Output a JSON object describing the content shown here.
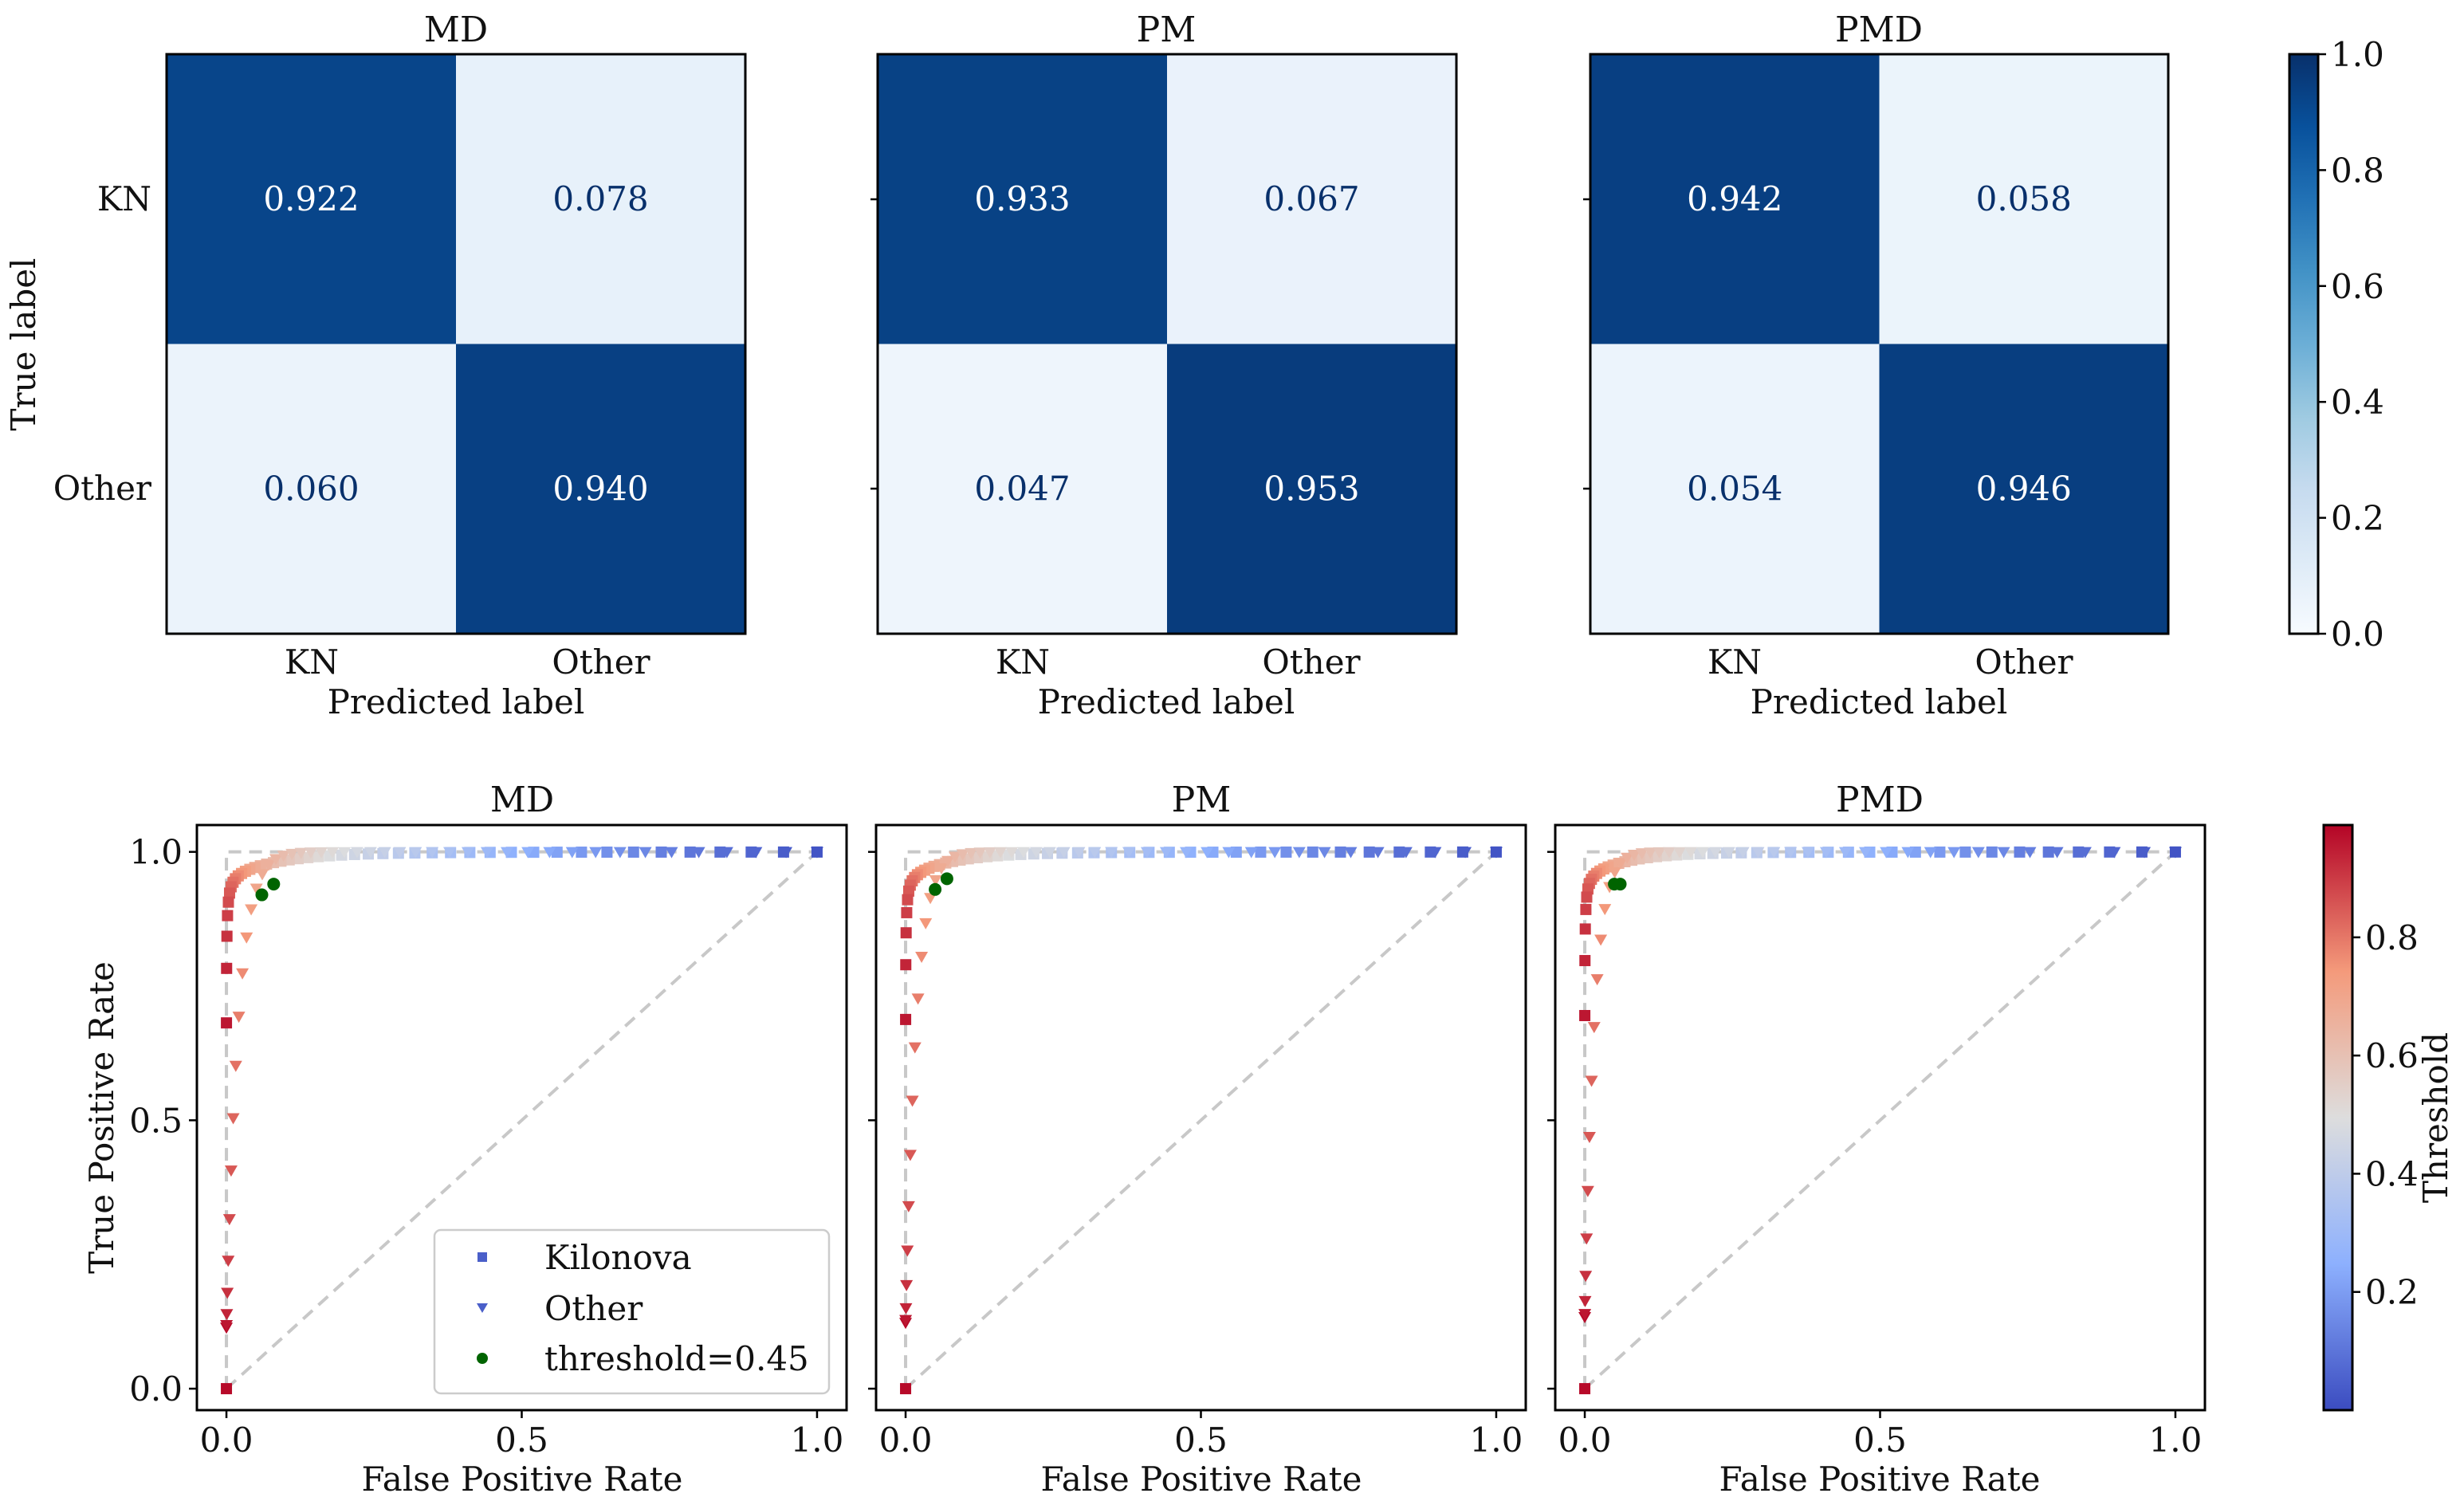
{
  "chart_data": [
    {
      "type": "heatmap",
      "title": "MD",
      "xlabel": "Predicted label",
      "ylabel": "True label",
      "x_categories": [
        "KN",
        "Other"
      ],
      "y_categories": [
        "KN",
        "Other"
      ],
      "values": [
        [
          0.922,
          0.078
        ],
        [
          0.06,
          0.94
        ]
      ],
      "value_labels": [
        [
          "0.922",
          "0.078"
        ],
        [
          "0.060",
          "0.940"
        ]
      ],
      "colorscale": "Blues",
      "vmin": 0,
      "vmax": 1
    },
    {
      "type": "heatmap",
      "title": "PM",
      "xlabel": "Predicted label",
      "ylabel": "",
      "x_categories": [
        "KN",
        "Other"
      ],
      "y_categories": [
        "KN",
        "Other"
      ],
      "values": [
        [
          0.933,
          0.067
        ],
        [
          0.047,
          0.953
        ]
      ],
      "value_labels": [
        [
          "0.933",
          "0.067"
        ],
        [
          "0.047",
          "0.953"
        ]
      ],
      "colorscale": "Blues",
      "vmin": 0,
      "vmax": 1
    },
    {
      "type": "heatmap",
      "title": "PMD",
      "xlabel": "Predicted label",
      "ylabel": "",
      "x_categories": [
        "KN",
        "Other"
      ],
      "y_categories": [
        "KN",
        "Other"
      ],
      "values": [
        [
          0.942,
          0.058
        ],
        [
          0.054,
          0.946
        ]
      ],
      "value_labels": [
        [
          "0.942",
          "0.058"
        ],
        [
          "0.054",
          "0.946"
        ]
      ],
      "colorscale": "Blues",
      "vmin": 0,
      "vmax": 1
    },
    {
      "type": "scatter",
      "title": "MD",
      "xlabel": "False Positive Rate",
      "ylabel": "True Positive Rate",
      "xlim": [
        -0.05,
        1.05
      ],
      "ylim": [
        -0.04,
        1.05
      ],
      "xticks": [
        0.0,
        0.5,
        1.0
      ],
      "xtick_labels": [
        "0.0",
        "0.5",
        "1.0"
      ],
      "yticks": [
        0.0,
        0.5,
        1.0
      ],
      "ytick_labels": [
        "0.0",
        "0.5",
        "1.0"
      ],
      "show_legend": true,
      "legend_position": "lower-right",
      "legend": [
        "Kilonova",
        "Other",
        "threshold=0.45"
      ],
      "threshold_point": [
        0.06,
        0.92
      ],
      "threshold_point_kilonova": [
        0.08,
        0.94
      ],
      "curve_params": {
        "kilonova_knee": 0.09,
        "other_knee": 0.11
      }
    },
    {
      "type": "scatter",
      "title": "PM",
      "xlabel": "False Positive Rate",
      "ylabel": "",
      "xlim": [
        -0.05,
        1.05
      ],
      "ylim": [
        -0.04,
        1.05
      ],
      "xticks": [
        0.0,
        0.5,
        1.0
      ],
      "xtick_labels": [
        "0.0",
        "0.5",
        "1.0"
      ],
      "yticks": [
        0.0,
        0.5,
        1.0
      ],
      "ytick_labels": [
        "",
        "",
        ""
      ],
      "show_legend": false,
      "threshold_point": [
        0.05,
        0.93
      ],
      "threshold_point_kilonova": [
        0.07,
        0.95
      ],
      "curve_params": {
        "kilonova_knee": 0.08,
        "other_knee": 0.1
      }
    },
    {
      "type": "scatter",
      "title": "PMD",
      "xlabel": "False Positive Rate",
      "ylabel": "",
      "xlim": [
        -0.05,
        1.05
      ],
      "ylim": [
        -0.04,
        1.05
      ],
      "xticks": [
        0.0,
        0.5,
        1.0
      ],
      "xtick_labels": [
        "0.0",
        "0.5",
        "1.0"
      ],
      "yticks": [
        0.0,
        0.5,
        1.0
      ],
      "ytick_labels": [
        "",
        "",
        ""
      ],
      "show_legend": false,
      "threshold_point": [
        0.05,
        0.94
      ],
      "threshold_point_kilonova": [
        0.06,
        0.94
      ],
      "curve_params": {
        "kilonova_knee": 0.07,
        "other_knee": 0.09
      }
    }
  ],
  "colorbars": {
    "confusion": {
      "colorscale": "Blues",
      "range": [
        0,
        1
      ],
      "ticks": [
        0,
        0.2,
        0.4,
        0.6,
        0.8,
        1.0
      ],
      "tick_labels": [
        "0.0",
        "0.2",
        "0.4",
        "0.6",
        "0.8",
        "1.0"
      ]
    },
    "threshold": {
      "colorscale": "coolwarm",
      "label": "Threshold",
      "range": [
        0.0,
        0.99
      ],
      "ticks": [
        0.2,
        0.4,
        0.6,
        0.8
      ],
      "tick_labels": [
        "0.2",
        "0.4",
        "0.6",
        "0.8"
      ]
    }
  },
  "colors": {
    "threshold_point": "#006400",
    "diagonal": "#c8c8c8",
    "cmap_blues_low": "#f7fbff",
    "cmap_blues_high": "#08306b"
  }
}
